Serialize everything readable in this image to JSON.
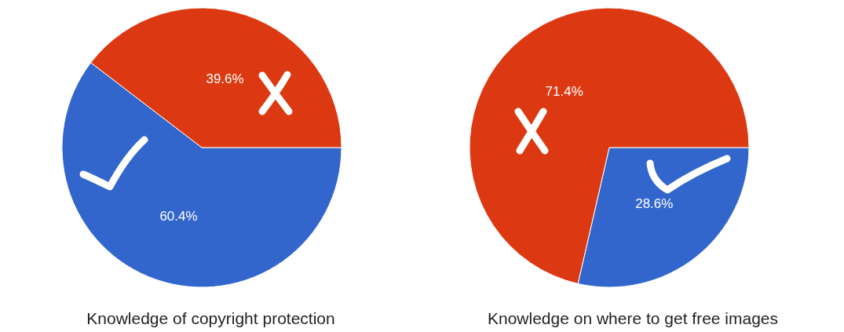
{
  "chart_data": [
    {
      "type": "pie",
      "title": "Knowledge of copyright protection",
      "categories": [
        null,
        null
      ],
      "values": [
        60.4,
        39.6
      ],
      "value_labels": [
        "60.4%",
        "39.6%"
      ],
      "colors": [
        "#3366cc",
        "#dc3912"
      ]
    },
    {
      "type": "pie",
      "title": "Knowledge on where to get free images",
      "categories": [
        null,
        null
      ],
      "values": [
        28.6,
        71.4
      ],
      "value_labels": [
        "28.6%",
        "71.4%"
      ],
      "colors": [
        "#3366cc",
        "#dc3912"
      ]
    }
  ]
}
